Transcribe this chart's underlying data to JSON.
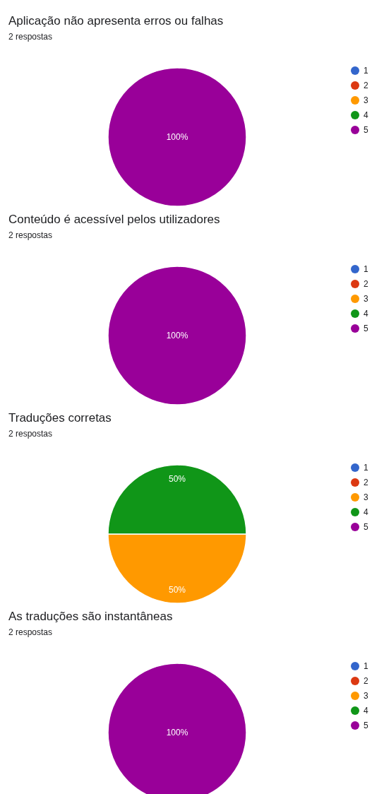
{
  "chart_data": [
    {
      "type": "pie",
      "title": "Aplicação não apresenta erros ou falhas",
      "subtitle": "2 respostas",
      "categories": [
        "1",
        "2",
        "3",
        "4",
        "5"
      ],
      "values": [
        0,
        0,
        0,
        0,
        100
      ],
      "value_labels": [
        null,
        null,
        null,
        null,
        "100%"
      ],
      "colors": [
        "#3366cc",
        "#dc3912",
        "#ff9900",
        "#109618",
        "#990099"
      ],
      "legend": "right"
    },
    {
      "type": "pie",
      "title": "Conteúdo é acessível pelos utilizadores",
      "subtitle": "2 respostas",
      "categories": [
        "1",
        "2",
        "3",
        "4",
        "5"
      ],
      "values": [
        0,
        0,
        0,
        0,
        100
      ],
      "value_labels": [
        null,
        null,
        null,
        null,
        "100%"
      ],
      "colors": [
        "#3366cc",
        "#dc3912",
        "#ff9900",
        "#109618",
        "#990099"
      ],
      "legend": "right"
    },
    {
      "type": "pie",
      "title": "Traduções corretas",
      "subtitle": "2 respostas",
      "categories": [
        "1",
        "2",
        "3",
        "4",
        "5"
      ],
      "values": [
        0,
        0,
        50,
        50,
        0
      ],
      "value_labels": [
        null,
        null,
        "50%",
        "50%",
        null
      ],
      "colors": [
        "#3366cc",
        "#dc3912",
        "#ff9900",
        "#109618",
        "#990099"
      ],
      "legend": "right"
    },
    {
      "type": "pie",
      "title": "As traduções são instantâneas",
      "subtitle": "2 respostas",
      "categories": [
        "1",
        "2",
        "3",
        "4",
        "5"
      ],
      "values": [
        0,
        0,
        0,
        0,
        100
      ],
      "value_labels": [
        null,
        null,
        null,
        null,
        "100%"
      ],
      "colors": [
        "#3366cc",
        "#dc3912",
        "#ff9900",
        "#109618",
        "#990099"
      ],
      "legend": "right"
    }
  ]
}
